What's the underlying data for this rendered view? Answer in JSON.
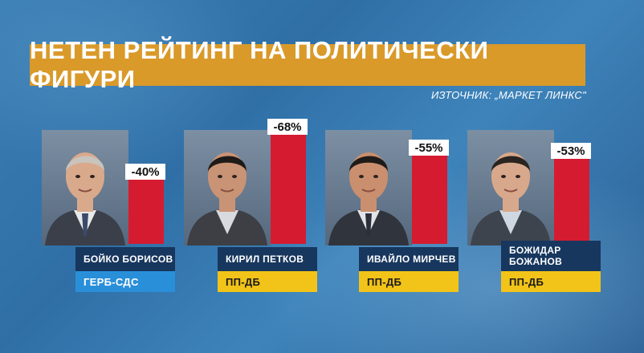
{
  "title": "НЕТЕН РЕЙТИНГ НА ПОЛИТИЧЕСКИ ФИГУРИ",
  "source": "ИЗТОЧНИК: „МАРКЕТ ЛИНКС\"",
  "colors": {
    "title_bg": "#d99a2a",
    "bar": "#d51b30",
    "name_bg": "#17375e",
    "party_gerb": "#2a8fd9",
    "party_pp": "#f2c318"
  },
  "chart_data": {
    "type": "bar",
    "title": "НЕТЕН РЕЙТИНГ НА ПОЛИТИЧЕСКИ ФИГУРИ",
    "categories": [
      "БОЙКО БОРИСОВ",
      "КИРИЛ ПЕТКОВ",
      "ИВАЙЛО МИРЧЕВ",
      "БОЖИДАР БОЖАНОВ"
    ],
    "values": [
      -40,
      -68,
      -55,
      -53
    ],
    "value_labels": [
      "-40%",
      "-68%",
      "-55%",
      "-53%"
    ],
    "parties": [
      "ГЕРБ-СДС",
      "ПП-ДБ",
      "ПП-ДБ",
      "ПП-ДБ"
    ]
  }
}
